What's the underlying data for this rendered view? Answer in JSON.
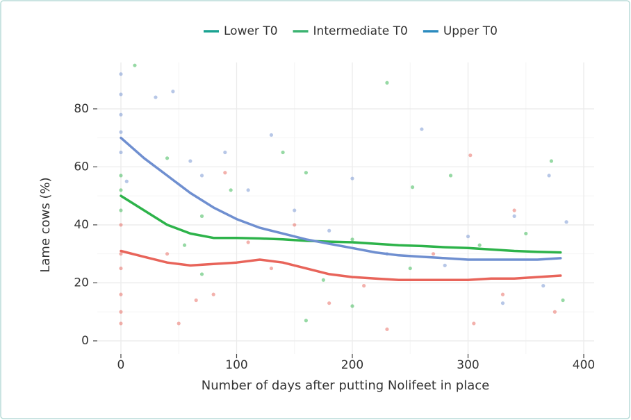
{
  "chart_data": {
    "type": "line",
    "x_label": "Number of days after putting Nolifeet in place",
    "y_label": "Lame cows (%)",
    "x": [
      0,
      20,
      40,
      60,
      80,
      100,
      120,
      140,
      160,
      180,
      200,
      220,
      240,
      260,
      280,
      300,
      320,
      340,
      360,
      380
    ],
    "series": [
      {
        "name": "Lower T0",
        "color": "#e8645a",
        "legend_color": "#1ba392",
        "values": [
          31,
          29,
          27,
          26,
          26.5,
          27,
          28,
          27,
          25,
          23,
          22,
          21.5,
          21,
          21,
          21,
          21,
          21.5,
          21.5,
          22,
          22.5
        ],
        "points": {
          "x": [
            0,
            0,
            0,
            0,
            0,
            0,
            50,
            65,
            80,
            110,
            130,
            150,
            180,
            210,
            230,
            270,
            302,
            305,
            340,
            375,
            330,
            90,
            40
          ],
          "y": [
            40,
            30,
            25,
            16,
            10,
            6,
            6,
            14,
            16,
            34,
            25,
            40,
            13,
            19,
            4,
            30,
            64,
            6,
            45,
            10,
            16,
            58,
            30
          ]
        }
      },
      {
        "name": "Intermediate T0",
        "color": "#2db34a",
        "legend_color": "#3cb371",
        "values": [
          50,
          45,
          40,
          37,
          35.5,
          35.5,
          35.3,
          35,
          34.5,
          34.2,
          34,
          33.5,
          33,
          32.7,
          32.3,
          32,
          31.5,
          31,
          30.7,
          30.5
        ],
        "points": {
          "x": [
            0,
            0,
            0,
            12,
            40,
            55,
            70,
            95,
            140,
            160,
            175,
            200,
            230,
            252,
            285,
            310,
            350,
            372,
            382,
            160,
            250,
            70,
            200
          ],
          "y": [
            57,
            52,
            45,
            95,
            63,
            33,
            43,
            52,
            65,
            58,
            21,
            35,
            89,
            53,
            57,
            33,
            37,
            62,
            14,
            7,
            25,
            23,
            12
          ]
        }
      },
      {
        "name": "Upper T0",
        "color": "#6f8fd0",
        "legend_color": "#2b8bbf",
        "values": [
          70,
          63,
          57,
          51,
          46,
          42,
          39,
          37,
          35,
          33.5,
          32,
          30.5,
          29.5,
          29,
          28.5,
          28,
          28,
          28,
          28,
          28.5
        ],
        "points": {
          "x": [
            0,
            0,
            0,
            0,
            0,
            5,
            30,
            45,
            60,
            70,
            90,
            110,
            130,
            150,
            180,
            200,
            230,
            260,
            300,
            340,
            370,
            385,
            365,
            330,
            280
          ],
          "y": [
            92,
            85,
            78,
            72,
            65,
            55,
            84,
            86,
            62,
            57,
            65,
            52,
            71,
            45,
            38,
            56,
            30,
            73,
            36,
            43,
            57,
            41,
            19,
            13,
            26
          ]
        }
      }
    ],
    "xlim": [
      -20.4,
      409
    ],
    "ylim": [
      -4.55,
      96
    ],
    "xticks": [
      0,
      100,
      200,
      300,
      400
    ],
    "yticks": [
      0,
      20,
      40,
      60,
      80
    ],
    "grid": true
  }
}
